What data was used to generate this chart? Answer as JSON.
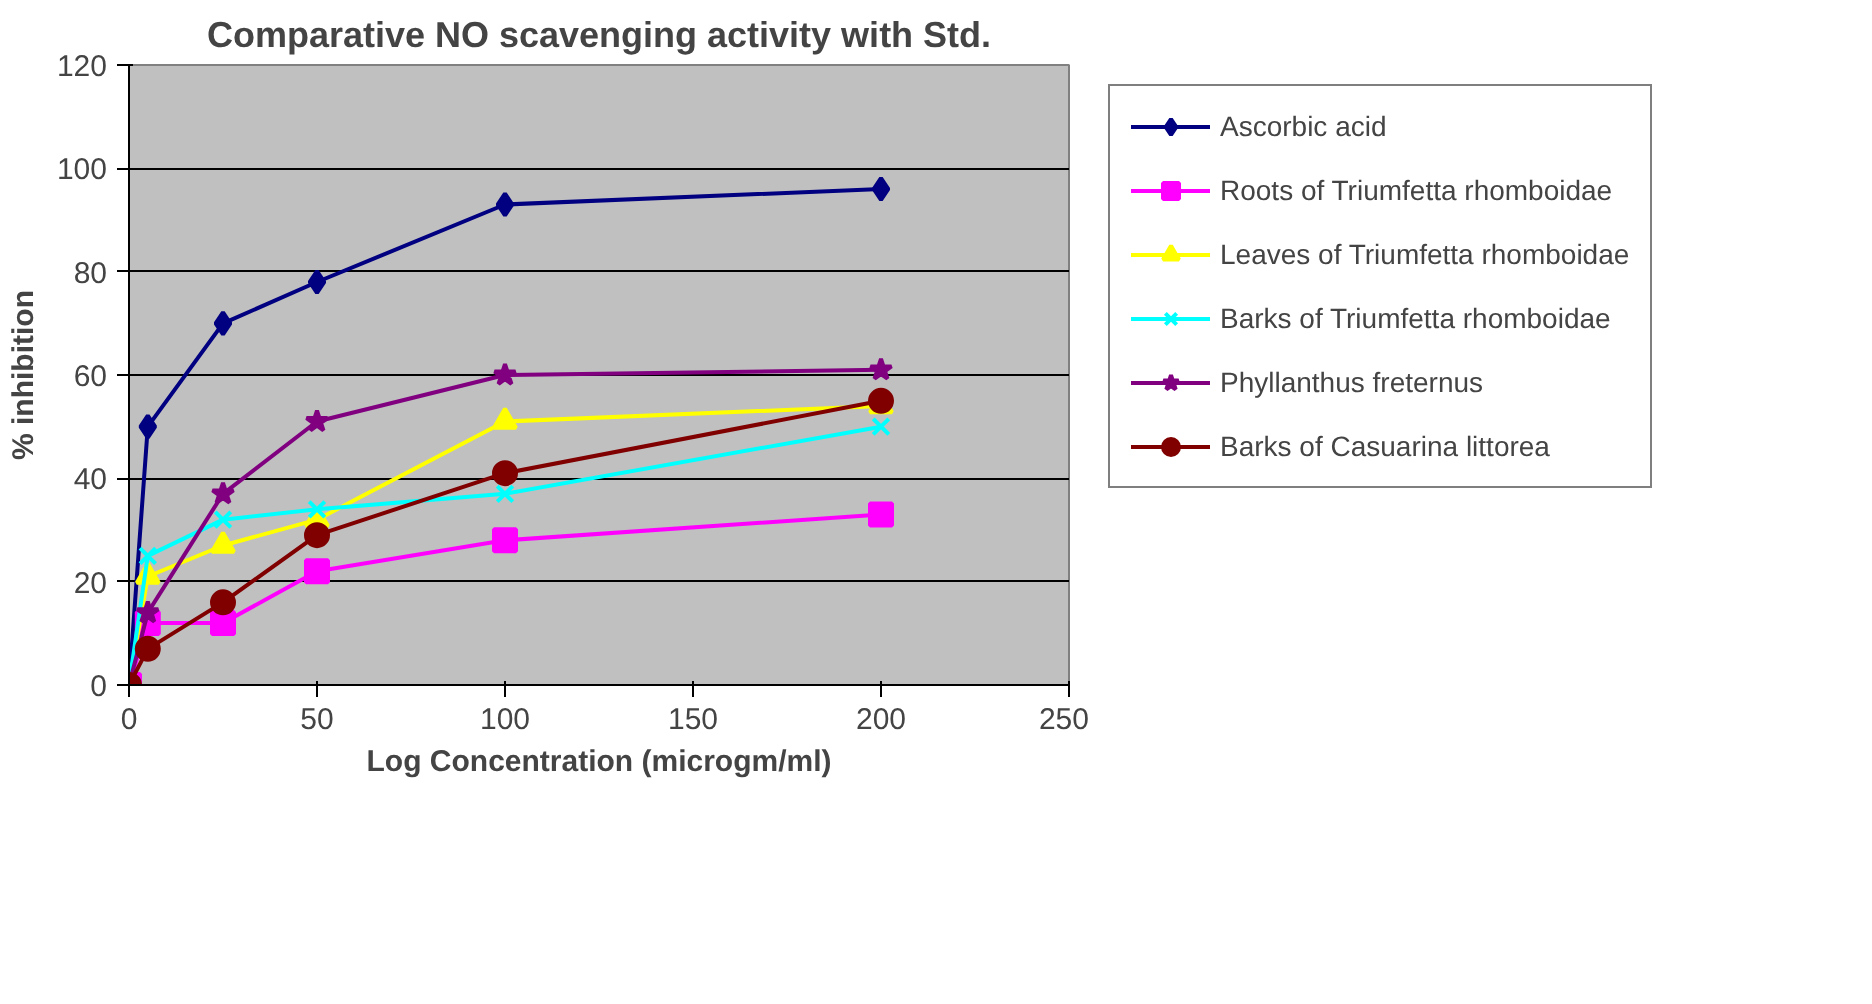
{
  "chart_data": {
    "type": "line",
    "title": "Comparative NO scavenging activity with Std.",
    "xlabel": "Log Concentration (microgm/ml)",
    "ylabel": "% inhibition",
    "x": [
      0,
      5,
      25,
      50,
      100,
      200
    ],
    "xlim": [
      0,
      250
    ],
    "xticks": [
      0,
      50,
      100,
      150,
      200,
      250
    ],
    "ylim": [
      0,
      120
    ],
    "yticks": [
      0,
      20,
      40,
      60,
      80,
      100,
      120
    ],
    "grid": "y",
    "legend": "right",
    "series": [
      {
        "name": "Ascorbic acid",
        "color": "#000080",
        "marker": "diamond",
        "values": [
          0,
          50,
          70,
          78,
          93,
          96
        ]
      },
      {
        "name": "Roots of Triumfetta rhomboidae",
        "color": "#ff00ff",
        "marker": "square",
        "values": [
          0,
          12,
          12,
          22,
          28,
          33
        ]
      },
      {
        "name": "Leaves of Triumfetta rhomboidae",
        "color": "#ffff00",
        "marker": "triangle",
        "values": [
          0,
          21,
          27,
          32,
          51,
          54
        ]
      },
      {
        "name": "Barks of Triumfetta rhomboidae",
        "color": "#00ffff",
        "marker": "cross",
        "values": [
          0,
          25,
          32,
          34,
          37,
          50
        ]
      },
      {
        "name": "Phyllanthus freternus",
        "color": "#800080",
        "marker": "star",
        "values": [
          0,
          14,
          37,
          51,
          60,
          61
        ]
      },
      {
        "name": "Barks of Casuarina littorea",
        "color": "#800000",
        "marker": "circle",
        "values": [
          0,
          7,
          16,
          29,
          41,
          55
        ]
      }
    ]
  }
}
